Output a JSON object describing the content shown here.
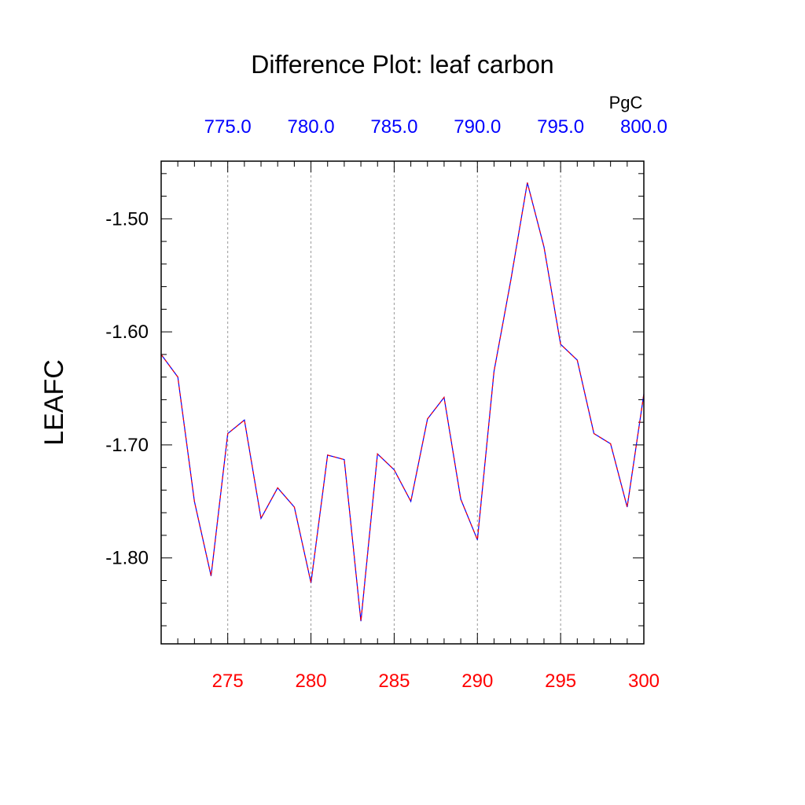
{
  "chart_data": {
    "type": "line",
    "title": "Difference Plot: leaf carbon",
    "ylabel": "LEAFC",
    "top_axis_unit": "PgC",
    "xlim": [
      271,
      300
    ],
    "ylim": [
      -1.876,
      -1.449
    ],
    "bottom_ticks": [
      "275",
      "280",
      "285",
      "290",
      "295",
      "300"
    ],
    "bottom_tick_values": [
      275,
      280,
      285,
      290,
      295,
      300
    ],
    "top_ticks": [
      "775.0",
      "780.0",
      "785.0",
      "790.0",
      "795.0",
      "800.0"
    ],
    "left_ticks": [
      "-1.50",
      "-1.60",
      "-1.70",
      "-1.80"
    ],
    "left_tick_values": [
      -1.5,
      -1.6,
      -1.7,
      -1.8
    ],
    "grid_x": true,
    "grid_y": false,
    "colors": {
      "bottom_ticks": "#ff0000",
      "top_ticks": "#0000ff",
      "series_line_1": "#0000ff",
      "series_line_2": "#ff0000"
    },
    "series": [
      {
        "x": [
          271,
          272,
          273,
          274,
          275,
          276,
          277,
          278,
          279,
          280,
          281,
          282,
          283,
          284,
          285,
          286,
          287,
          288,
          289,
          290,
          291,
          292,
          293,
          294,
          295,
          296,
          297,
          298,
          299,
          300
        ],
        "values": [
          -1.62,
          -1.64,
          -1.75,
          -1.816,
          -1.69,
          -1.678,
          -1.765,
          -1.738,
          -1.755,
          -1.822,
          -1.709,
          -1.713,
          -1.856,
          -1.708,
          -1.722,
          -1.75,
          -1.677,
          -1.658,
          -1.748,
          -1.784,
          -1.635,
          -1.555,
          -1.468,
          -1.525,
          -1.611,
          -1.625,
          -1.69,
          -1.699,
          -1.755,
          -1.655
        ]
      }
    ]
  }
}
